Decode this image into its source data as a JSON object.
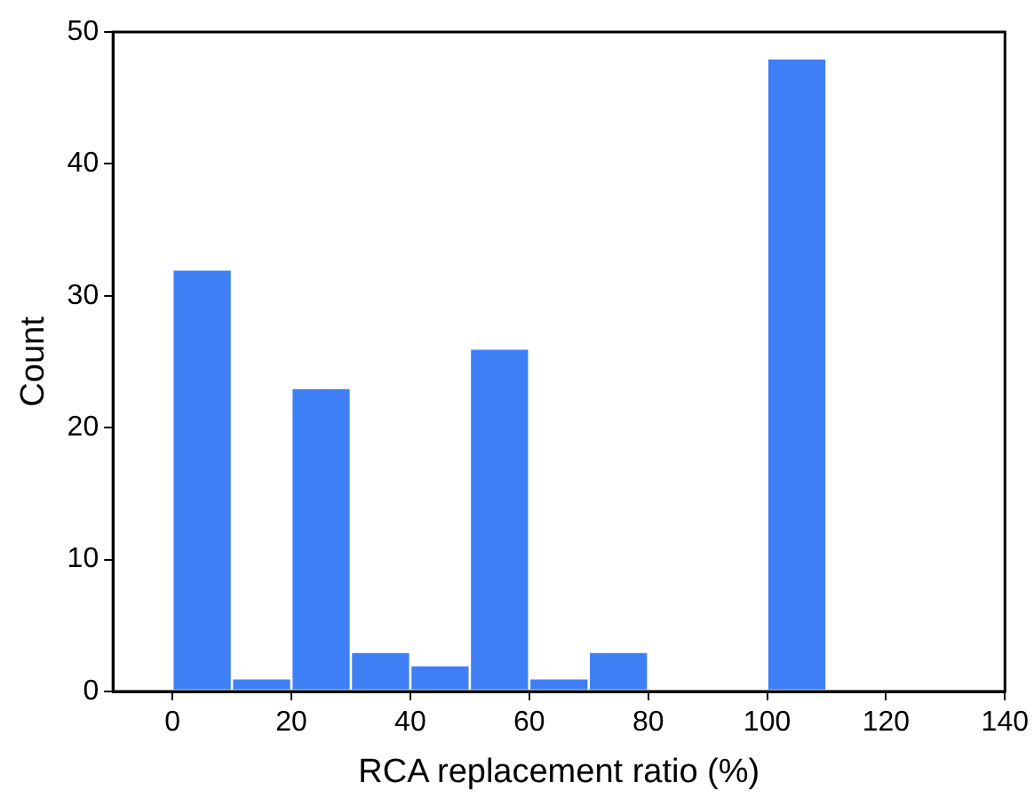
{
  "chart_data": {
    "type": "histogram",
    "xlabel": "RCA replacement ratio (%)",
    "ylabel": "Count",
    "bins": [
      0,
      10,
      20,
      30,
      40,
      50,
      60,
      70,
      80,
      90,
      100,
      110
    ],
    "values": [
      32,
      1,
      23,
      3,
      2,
      26,
      1,
      3,
      0,
      0,
      48
    ],
    "color": "#3f7ff5",
    "xlim": [
      -10,
      140
    ],
    "xticks": [
      0,
      20,
      40,
      60,
      80,
      100,
      120,
      140
    ],
    "ylim": [
      0,
      50
    ],
    "yticks": [
      0,
      10,
      20,
      30,
      40,
      50
    ],
    "grid": false
  }
}
